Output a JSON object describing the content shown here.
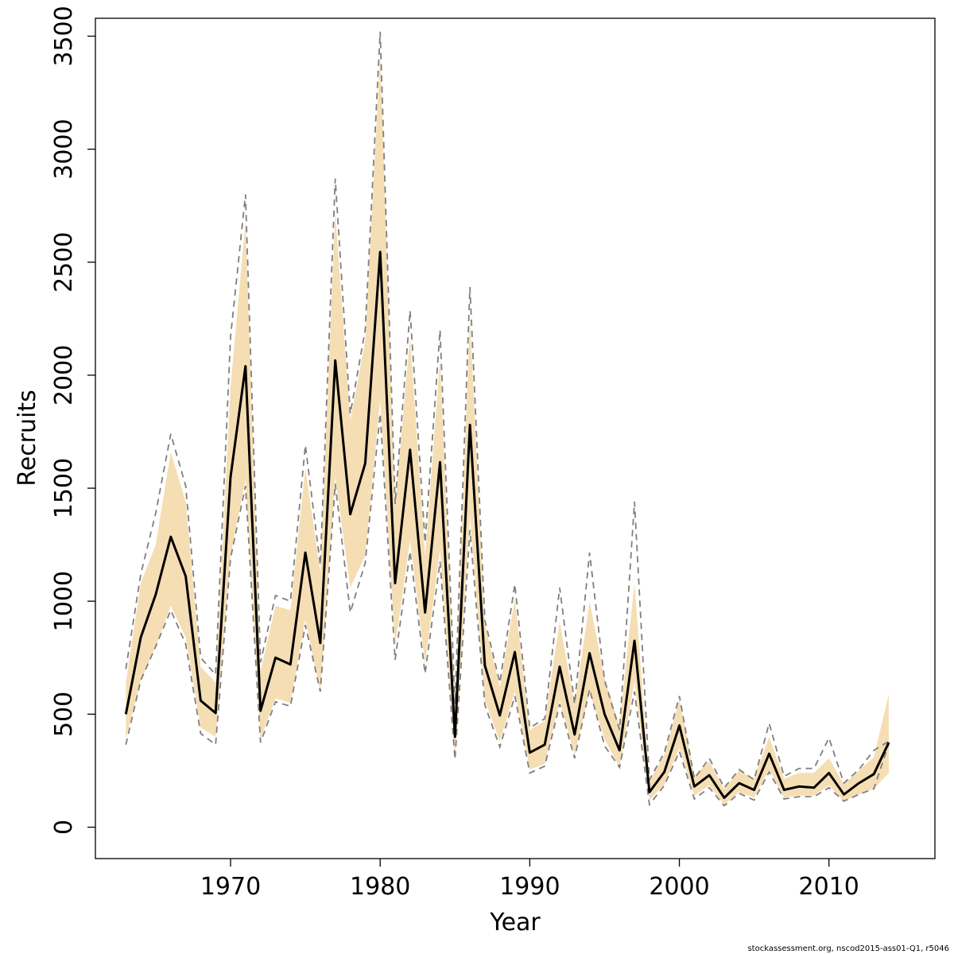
{
  "chart_data": {
    "type": "line",
    "xlabel": "Year",
    "ylabel": "Recruits",
    "xlim": [
      1962.5,
      2014.5
    ],
    "ylim": [
      0,
      3500
    ],
    "x_ticks": [
      1970,
      1980,
      1990,
      2000,
      2010
    ],
    "y_ticks": [
      0,
      500,
      1000,
      1500,
      2000,
      2500,
      3000,
      3500
    ],
    "grid": false,
    "legend": "none",
    "footer": "stockassessment.org, nscod2015-ass01-Q1, r5046",
    "colors": {
      "band": "#f5deb3",
      "line": "#000000",
      "dashed": "#7f7f7f",
      "frame": "#000000"
    },
    "years": [
      1963,
      1964,
      1965,
      1966,
      1967,
      1968,
      1969,
      1970,
      1971,
      1972,
      1973,
      1974,
      1975,
      1976,
      1977,
      1978,
      1979,
      1980,
      1981,
      1982,
      1983,
      1984,
      1985,
      1986,
      1987,
      1988,
      1989,
      1990,
      1991,
      1992,
      1993,
      1994,
      1995,
      1996,
      1997,
      1998,
      1999,
      2000,
      2001,
      2002,
      2003,
      2004,
      2005,
      2006,
      2007,
      2008,
      2009,
      2010,
      2011,
      2012,
      2013,
      2014
    ],
    "series": [
      {
        "name": "estimate",
        "style": "solid",
        "values": [
          500,
          840,
          1030,
          1285,
          1110,
          560,
          505,
          1550,
          2040,
          515,
          750,
          720,
          1215,
          815,
          2065,
          1385,
          1610,
          2545,
          1080,
          1670,
          950,
          1615,
          400,
          1780,
          715,
          495,
          775,
          330,
          365,
          710,
          410,
          770,
          500,
          340,
          825,
          155,
          245,
          450,
          180,
          230,
          130,
          195,
          165,
          325,
          165,
          180,
          175,
          240,
          145,
          195,
          235,
          375
        ]
      },
      {
        "name": "band-upper",
        "style": "filled",
        "values": [
          640,
          1080,
          1250,
          1660,
          1440,
          710,
          640,
          1950,
          2680,
          690,
          980,
          960,
          1590,
          1130,
          2720,
          1800,
          2150,
          3420,
          1420,
          2170,
          1200,
          2070,
          530,
          2250,
          900,
          620,
          1010,
          430,
          470,
          910,
          540,
          1000,
          660,
          450,
          1080,
          205,
          320,
          565,
          230,
          290,
          170,
          250,
          215,
          400,
          215,
          240,
          240,
          305,
          190,
          250,
          310,
          590
        ]
      },
      {
        "name": "band-lower",
        "style": "filled",
        "values": [
          390,
          650,
          800,
          980,
          840,
          440,
          400,
          1200,
          1540,
          390,
          570,
          550,
          920,
          600,
          1550,
          1060,
          1200,
          1890,
          800,
          1270,
          720,
          1230,
          300,
          1380,
          560,
          380,
          600,
          255,
          280,
          560,
          320,
          600,
          390,
          265,
          645,
          120,
          190,
          350,
          140,
          185,
          100,
          155,
          130,
          255,
          130,
          140,
          140,
          185,
          115,
          145,
          170,
          240
        ]
      },
      {
        "name": "dashed-upper",
        "style": "dashed",
        "values": [
          700,
          1120,
          1390,
          1740,
          1510,
          750,
          675,
          2170,
          2800,
          730,
          1025,
          1000,
          1690,
          1160,
          2870,
          1830,
          2200,
          3520,
          1430,
          2285,
          1260,
          2200,
          545,
          2390,
          915,
          640,
          1075,
          440,
          480,
          1060,
          545,
          1215,
          650,
          430,
          1440,
          210,
          330,
          580,
          215,
          305,
          175,
          255,
          210,
          460,
          225,
          260,
          260,
          395,
          195,
          255,
          340,
          380
        ]
      },
      {
        "name": "dashed-lower",
        "style": "dashed",
        "values": [
          365,
          650,
          800,
          960,
          810,
          415,
          365,
          1190,
          1510,
          375,
          555,
          535,
          895,
          600,
          1520,
          950,
          1170,
          1830,
          740,
          1220,
          680,
          1175,
          300,
          1315,
          540,
          355,
          580,
          240,
          270,
          545,
          305,
          610,
          360,
          265,
          600,
          100,
          185,
          335,
          125,
          175,
          95,
          150,
          120,
          245,
          125,
          135,
          135,
          175,
          115,
          145,
          170,
          370
        ]
      }
    ]
  }
}
